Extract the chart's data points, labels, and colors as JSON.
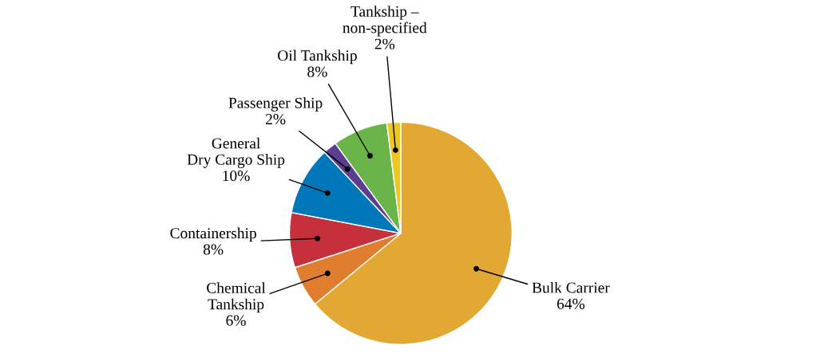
{
  "chart_data": {
    "type": "pie",
    "categories": [
      "Bulk Carrier",
      "Chemical\nTankship",
      "Containership",
      "General\nDry Cargo Ship",
      "Passenger Ship",
      "Oil Tankship",
      "Tankship –\nnon-specified"
    ],
    "values": [
      64,
      6,
      8,
      10,
      2,
      8,
      2
    ],
    "value_labels": [
      "64%",
      "6%",
      "8%",
      "10%",
      "2%",
      "8%",
      "2%"
    ],
    "colors": [
      "#e3a833",
      "#e07d2e",
      "#c6303a",
      "#0077b8",
      "#5b3d91",
      "#6bb44a",
      "#ecc825"
    ]
  }
}
